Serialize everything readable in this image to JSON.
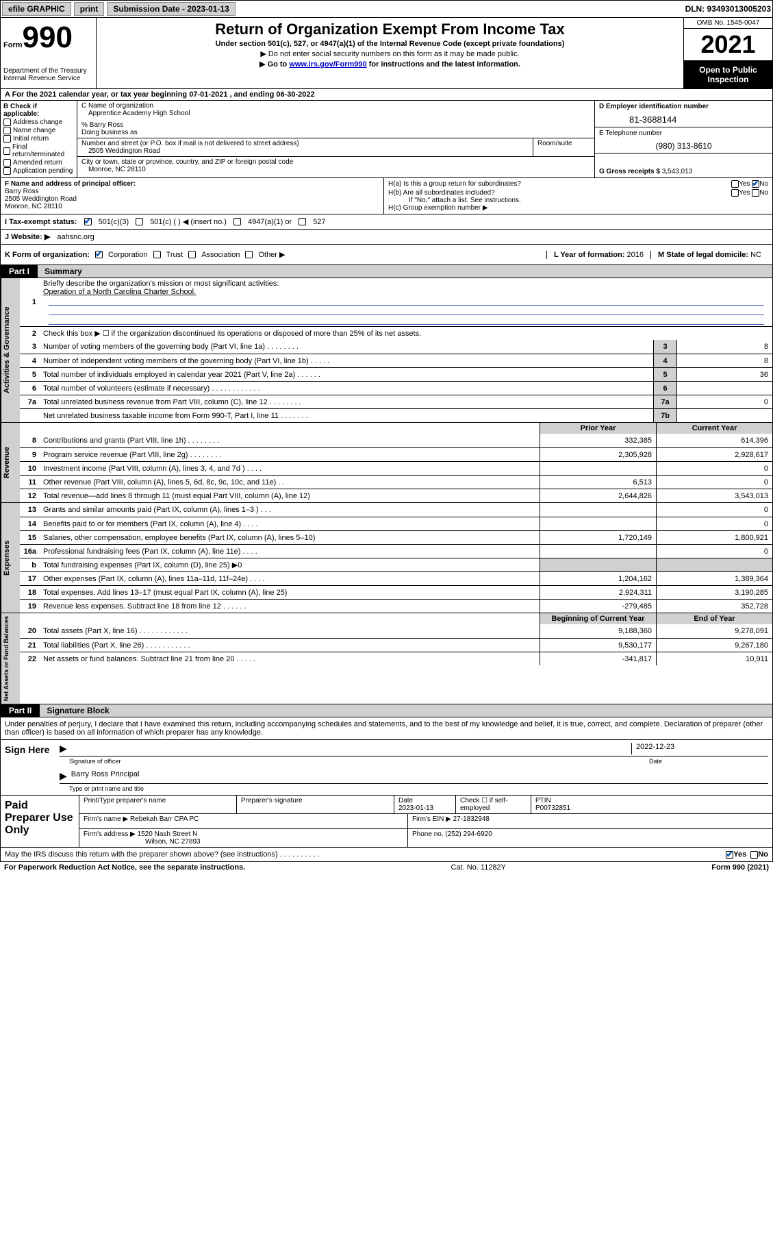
{
  "colors": {
    "text": "#000000",
    "bg": "#ffffff",
    "shade": "#d0d0d0",
    "black": "#000000",
    "link": "#0000cc",
    "rule_blue": "#4060c0",
    "check": "#1560bd"
  },
  "top_bar": {
    "efile": "efile GRAPHIC",
    "print": "print",
    "sub_label": "Submission Date - 2023-01-13",
    "dln": "DLN: 93493013005203"
  },
  "header": {
    "form_word": "Form",
    "form_num": "990",
    "dept": "Department of the Treasury",
    "irs": "Internal Revenue Service",
    "title": "Return of Organization Exempt From Income Tax",
    "sub1": "Under section 501(c), 527, or 4947(a)(1) of the Internal Revenue Code (except private foundations)",
    "sub2": "▶ Do not enter social security numbers on this form as it may be made public.",
    "sub3_pre": "▶ Go to ",
    "sub3_link": "www.irs.gov/Form990",
    "sub3_post": " for instructions and the latest information.",
    "omb": "OMB No. 1545-0047",
    "year": "2021",
    "open": "Open to Public Inspection"
  },
  "row_a": "A For the 2021 calendar year, or tax year beginning 07-01-2021   , and ending 06-30-2022",
  "col_b": {
    "label": "B Check if applicable:",
    "items": [
      "Address change",
      "Name change",
      "Initial return",
      "Final return/terminated",
      "Amended return",
      "Application pending"
    ]
  },
  "col_c": {
    "name_label": "C Name of organization",
    "name": "Apprentice Academy High School",
    "care_of": "% Barry Ross",
    "dba_label": "Doing business as",
    "addr_label": "Number and street (or P.O. box if mail is not delivered to street address)",
    "addr": "2505 Weddington Road",
    "room_label": "Room/suite",
    "city_label": "City or town, state or province, country, and ZIP or foreign postal code",
    "city": "Monroe, NC  28110"
  },
  "col_d": {
    "d_label": "D Employer identification number",
    "ein": "81-3688144",
    "e_label": "E Telephone number",
    "phone": "(980) 313-8610",
    "g_label": "G Gross receipts $",
    "g_val": "3,543,013"
  },
  "fgh": {
    "f_label": "F Name and address of principal officer:",
    "f_name": "Barry Ross",
    "f_addr1": "2505 Weddington Road",
    "f_addr2": "Monroe, NC  28110",
    "ha": "H(a)  Is this a group return for subordinates?",
    "hb": "H(b)  Are all subordinates included?",
    "hb_note": "If \"No,\" attach a list. See instructions.",
    "hc": "H(c)  Group exemption number ▶",
    "yes": "Yes",
    "no": "No"
  },
  "row_i": {
    "label": "I   Tax-exempt status:",
    "opt1": "501(c)(3)",
    "opt2": "501(c) (  ) ◀ (insert no.)",
    "opt3": "4947(a)(1) or",
    "opt4": "527"
  },
  "row_j": {
    "label": "J   Website: ▶",
    "val": "aahsnc.org"
  },
  "row_k": {
    "label": "K Form of organization:",
    "opts": [
      "Corporation",
      "Trust",
      "Association",
      "Other ▶"
    ],
    "l_label": "L Year of formation:",
    "l_val": "2016",
    "m_label": "M State of legal domicile:",
    "m_val": "NC"
  },
  "part1": {
    "hdr": "Part I",
    "title": "Summary",
    "sections": {
      "gov": "Activities & Governance",
      "rev": "Revenue",
      "exp": "Expenses",
      "net": "Net Assets or Fund Balances"
    },
    "line1": "Briefly describe the organization's mission or most significant activities:",
    "mission": "Operation of a North Carolina Charter School.",
    "line2": "Check this box ▶ ☐  if the organization discontinued its operations or disposed of more than 25% of its net assets.",
    "gov_lines": [
      {
        "n": "3",
        "d": "Number of voting members of the governing body (Part VI, line 1a)  .   .   .   .   .   .   .   .",
        "box": "3",
        "v": "8"
      },
      {
        "n": "4",
        "d": "Number of independent voting members of the governing body (Part VI, line 1b)  .   .   .   .   .",
        "box": "4",
        "v": "8"
      },
      {
        "n": "5",
        "d": "Total number of individuals employed in calendar year 2021 (Part V, line 2a)  .   .   .   .   .   .",
        "box": "5",
        "v": "36"
      },
      {
        "n": "6",
        "d": "Total number of volunteers (estimate if necessary)  .   .   .   .   .   .   .   .   .   .   .   .",
        "box": "6",
        "v": ""
      },
      {
        "n": "7a",
        "d": "Total unrelated business revenue from Part VIII, column (C), line 12  .   .   .   .   .   .   .   .",
        "box": "7a",
        "v": "0"
      },
      {
        "n": "",
        "d": "Net unrelated business taxable income from Form 990-T, Part I, line 11  .   .   .   .   .   .   .",
        "box": "7b",
        "v": ""
      }
    ],
    "col_hdrs": {
      "prior": "Prior Year",
      "current": "Current Year",
      "begin": "Beginning of Current Year",
      "end": "End of Year"
    },
    "rev_lines": [
      {
        "n": "8",
        "d": "Contributions and grants (Part VIII, line 1h)   .   .   .   .   .   .   .   .",
        "p": "332,385",
        "c": "614,396"
      },
      {
        "n": "9",
        "d": "Program service revenue (Part VIII, line 2g)   .   .   .   .   .   .   .   .",
        "p": "2,305,928",
        "c": "2,928,617"
      },
      {
        "n": "10",
        "d": "Investment income (Part VIII, column (A), lines 3, 4, and 7d )   .   .   .   .",
        "p": "",
        "c": "0"
      },
      {
        "n": "11",
        "d": "Other revenue (Part VIII, column (A), lines 5, 6d, 8c, 9c, 10c, and 11e)   .   .",
        "p": "6,513",
        "c": "0"
      },
      {
        "n": "12",
        "d": "Total revenue—add lines 8 through 11 (must equal Part VIII, column (A), line 12)",
        "p": "2,644,826",
        "c": "3,543,013"
      }
    ],
    "exp_lines": [
      {
        "n": "13",
        "d": "Grants and similar amounts paid (Part IX, column (A), lines 1–3 )   .   .   .",
        "p": "",
        "c": "0"
      },
      {
        "n": "14",
        "d": "Benefits paid to or for members (Part IX, column (A), line 4)   .   .   .   .",
        "p": "",
        "c": "0"
      },
      {
        "n": "15",
        "d": "Salaries, other compensation, employee benefits (Part IX, column (A), lines 5–10)",
        "p": "1,720,149",
        "c": "1,800,921"
      },
      {
        "n": "16a",
        "d": "Professional fundraising fees (Part IX, column (A), line 11e)   .   .   .   .",
        "p": "",
        "c": "0"
      },
      {
        "n": "b",
        "d": "Total fundraising expenses (Part IX, column (D), line 25) ▶0",
        "p": "shade",
        "c": "shade"
      },
      {
        "n": "17",
        "d": "Other expenses (Part IX, column (A), lines 11a–11d, 11f–24e)   .   .   .   .",
        "p": "1,204,162",
        "c": "1,389,364"
      },
      {
        "n": "18",
        "d": "Total expenses. Add lines 13–17 (must equal Part IX, column (A), line 25)",
        "p": "2,924,311",
        "c": "3,190,285"
      },
      {
        "n": "19",
        "d": "Revenue less expenses. Subtract line 18 from line 12   .   .   .   .   .   .",
        "p": "-279,485",
        "c": "352,728"
      }
    ],
    "net_lines": [
      {
        "n": "20",
        "d": "Total assets (Part X, line 16)   .   .   .   .   .   .   .   .   .   .   .   .",
        "p": "9,188,360",
        "c": "9,278,091"
      },
      {
        "n": "21",
        "d": "Total liabilities (Part X, line 26)   .   .   .   .   .   .   .   .   .   .   .",
        "p": "9,530,177",
        "c": "9,267,180"
      },
      {
        "n": "22",
        "d": "Net assets or fund balances. Subtract line 21 from line 20   .   .   .   .   .",
        "p": "-341,817",
        "c": "10,911"
      }
    ]
  },
  "part2": {
    "hdr": "Part II",
    "title": "Signature Block",
    "decl": "Under penalties of perjury, I declare that I have examined this return, including accompanying schedules and statements, and to the best of my knowledge and belief, it is true, correct, and complete. Declaration of preparer (other than officer) is based on all information of which preparer has any knowledge.",
    "sign_here": "Sign Here",
    "sig_officer": "Signature of officer",
    "sig_date": "2022-12-23",
    "date_label": "Date",
    "name_title": "Barry Ross  Principal",
    "name_title_label": "Type or print name and title",
    "paid": "Paid Preparer Use Only",
    "p_name_label": "Print/Type preparer's name",
    "p_sig_label": "Preparer's signature",
    "p_date_label": "Date",
    "p_date": "2023-01-13",
    "p_check_label": "Check ☐ if self-employed",
    "ptin_label": "PTIN",
    "ptin": "P00732851",
    "firm_name_label": "Firm's name    ▶",
    "firm_name": "Rebekah Barr CPA PC",
    "firm_ein_label": "Firm's EIN ▶",
    "firm_ein": "27-1832948",
    "firm_addr_label": "Firm's address ▶",
    "firm_addr1": "1520 Nash Street N",
    "firm_addr2": "Wilson, NC  27893",
    "firm_phone_label": "Phone no.",
    "firm_phone": "(252) 294-6920",
    "may_irs": "May the IRS discuss this return with the preparer shown above? (see instructions)   .   .   .   .   .   .   .   .   .   .",
    "yes": "Yes",
    "no": "No"
  },
  "footer": {
    "pra": "For Paperwork Reduction Act Notice, see the separate instructions.",
    "cat": "Cat. No. 11282Y",
    "form": "Form 990 (2021)"
  }
}
